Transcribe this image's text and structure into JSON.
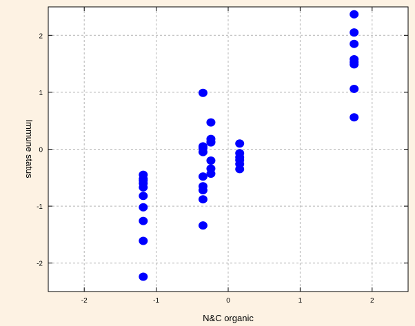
{
  "chart_data": {
    "type": "scatter",
    "xlabel": "N&C organic",
    "ylabel": "Immune status",
    "xlim": [
      -2.5,
      2.5
    ],
    "ylim": [
      -2.5,
      2.5
    ],
    "x_ticks": [
      -2,
      -1,
      0,
      1,
      2
    ],
    "y_ticks": [
      -2,
      -1,
      0,
      1,
      2
    ],
    "grid": true,
    "marker_color": "#0000ff",
    "background_color": "#fdf2e3",
    "plot_background_color": "#ffffff",
    "series": [
      {
        "x": [
          -1.18,
          -1.18,
          -1.18,
          -1.18,
          -1.18,
          -1.18,
          -1.18,
          -1.18,
          -1.18,
          -1.18,
          -0.35,
          -0.35,
          -0.35,
          -0.35,
          -0.35,
          -0.35,
          -0.35,
          -0.35,
          -0.35,
          -0.24,
          -0.24,
          -0.24,
          -0.24,
          -0.24,
          -0.24,
          -0.24,
          0.16,
          0.16,
          0.16,
          0.16,
          0.16,
          0.16,
          1.75,
          1.75,
          1.75,
          1.75,
          1.75,
          1.75,
          1.75,
          1.75
        ],
        "y": [
          -0.45,
          -0.52,
          -0.6,
          -0.67,
          -0.82,
          -1.02,
          -1.26,
          -1.61,
          -2.24,
          -0.55,
          0.99,
          0.02,
          -0.05,
          -0.48,
          -0.65,
          -0.72,
          -0.88,
          -1.34,
          0.05,
          0.47,
          0.18,
          0.12,
          -0.2,
          -0.34,
          -0.43,
          0.13,
          0.1,
          -0.07,
          -0.14,
          -0.19,
          -0.26,
          -0.35,
          2.37,
          2.05,
          1.85,
          1.58,
          1.53,
          1.49,
          1.06,
          0.56
        ]
      }
    ]
  }
}
